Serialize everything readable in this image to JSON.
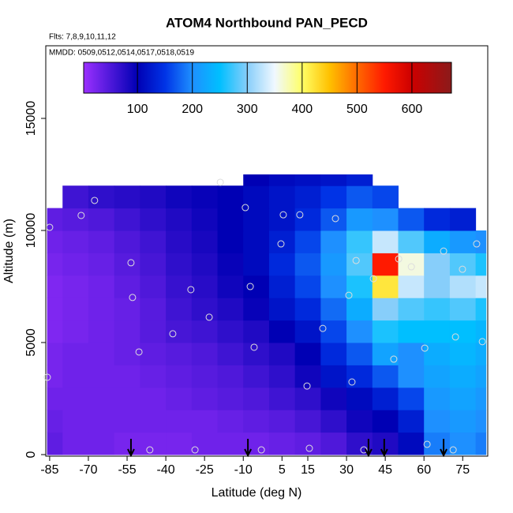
{
  "chart_data": {
    "type": "heatmap",
    "title": "ATOM4 Northbound PAN_PECD",
    "subtitle": "Flts: 7,8,9,10,11,12",
    "annotation": "MMDD: 0509,0512,0514,0517,0518,0519",
    "xlabel": "Latitude (deg N)",
    "ylabel": "Altitude (m)",
    "xlim": [
      -86.5,
      84.7
    ],
    "ylim": [
      -70,
      18240
    ],
    "xticks": [
      -85,
      -70,
      -55,
      -40,
      -25,
      -10,
      5,
      15,
      30,
      45,
      60,
      75
    ],
    "yticks": [
      0,
      5000,
      10000,
      15000
    ],
    "x_edges": [
      -86,
      -80,
      -70,
      -60,
      -50,
      -40,
      -30,
      -20,
      -10,
      0,
      10,
      20,
      30,
      40,
      50,
      60,
      70,
      80,
      84
    ],
    "y_edges": [
      0,
      1000,
      2000,
      3000,
      4000,
      5000,
      6000,
      7000,
      8000,
      9000,
      10000,
      11000,
      12000,
      12500
    ],
    "z": [
      [
        40,
        30,
        30,
        25,
        25,
        25,
        30,
        30,
        30,
        35,
        40,
        50,
        70,
        80,
        110,
        190,
        200,
        190
      ],
      [
        35,
        30,
        30,
        30,
        30,
        30,
        30,
        35,
        40,
        45,
        55,
        70,
        90,
        100,
        130,
        200,
        210,
        200
      ],
      [
        30,
        30,
        30,
        30,
        30,
        35,
        40,
        45,
        50,
        60,
        70,
        90,
        110,
        130,
        160,
        210,
        220,
        210
      ],
      [
        25,
        30,
        30,
        30,
        35,
        40,
        45,
        50,
        60,
        70,
        90,
        120,
        140,
        170,
        200,
        220,
        230,
        220
      ],
      [
        25,
        30,
        30,
        35,
        40,
        45,
        50,
        60,
        70,
        80,
        100,
        140,
        170,
        220,
        200,
        230,
        240,
        230
      ],
      [
        20,
        25,
        30,
        35,
        45,
        55,
        60,
        70,
        80,
        100,
        120,
        160,
        200,
        260,
        250,
        250,
        250,
        240
      ],
      [
        20,
        25,
        30,
        35,
        45,
        60,
        70,
        80,
        95,
        120,
        140,
        180,
        230,
        300,
        280,
        270,
        280,
        260
      ],
      [
        20,
        25,
        30,
        40,
        50,
        65,
        75,
        90,
        100,
        130,
        160,
        200,
        260,
        420,
        330,
        300,
        320,
        330
      ],
      [
        25,
        30,
        35,
        45,
        55,
        70,
        80,
        95,
        110,
        140,
        170,
        210,
        280,
        550,
        360,
        300,
        280,
        260
      ],
      [
        30,
        35,
        40,
        50,
        60,
        75,
        85,
        100,
        110,
        130,
        160,
        200,
        270,
        330,
        280,
        230,
        210,
        200
      ],
      [
        40,
        45,
        50,
        60,
        70,
        80,
        90,
        100,
        110,
        120,
        140,
        170,
        210,
        200,
        170,
        140,
        130,
        null
      ],
      [
        null,
        60,
        70,
        75,
        80,
        90,
        95,
        100,
        110,
        120,
        130,
        150,
        170,
        160,
        null,
        null,
        null,
        null
      ],
      [
        null,
        null,
        null,
        null,
        null,
        null,
        null,
        null,
        100,
        110,
        115,
        120,
        130,
        null,
        null,
        null,
        null,
        null
      ]
    ],
    "zlim": [
      2,
      672
    ],
    "zticks": [
      100,
      200,
      300,
      400,
      500,
      600
    ],
    "colorscale": [
      [
        2,
        "#9b30ff"
      ],
      [
        100,
        "#0000b4"
      ],
      [
        150,
        "#0033e6"
      ],
      [
        200,
        "#1e90ff"
      ],
      [
        250,
        "#00bfff"
      ],
      [
        300,
        "#87cefa"
      ],
      [
        350,
        "#f0f8ff"
      ],
      [
        400,
        "#ffff66"
      ],
      [
        450,
        "#ffc000"
      ],
      [
        500,
        "#ff6a00"
      ],
      [
        550,
        "#ff1a00"
      ],
      [
        600,
        "#cc0000"
      ],
      [
        672,
        "#8b1a1a"
      ]
    ],
    "points": {
      "x": [
        -85,
        -72.8,
        -67.6,
        -53.5,
        -52.9,
        -50.4,
        -37.3,
        -30.3,
        -23.2,
        -18.9,
        -9.2,
        -7.3,
        -5.8,
        4.6,
        5.5,
        11.9,
        14.7,
        20.8,
        25.7,
        30.9,
        32.1,
        33.7,
        40.4,
        48.3,
        50.2,
        55.1,
        60.3,
        61.2,
        67.6,
        72.2,
        74.9,
        80.4,
        82.6,
        -46.2,
        -28.7,
        -3.0,
        15.6,
        36.7,
        71.3,
        -85.9
      ],
      "y": [
        10140,
        10670,
        11340,
        8560,
        7010,
        4580,
        5390,
        7360,
        6130,
        12150,
        11020,
        7500,
        4790,
        9400,
        10700,
        10700,
        3060,
        5630,
        10530,
        7110,
        3240,
        8660,
        7850,
        4260,
        8730,
        8380,
        4750,
        460,
        9080,
        5250,
        8270,
        9400,
        5040,
        210,
        210,
        210,
        280,
        210,
        210,
        3450
      ]
    },
    "arrows_x": [
      -53.5,
      -8.2,
      38.5,
      44.6,
      67.6
    ]
  }
}
